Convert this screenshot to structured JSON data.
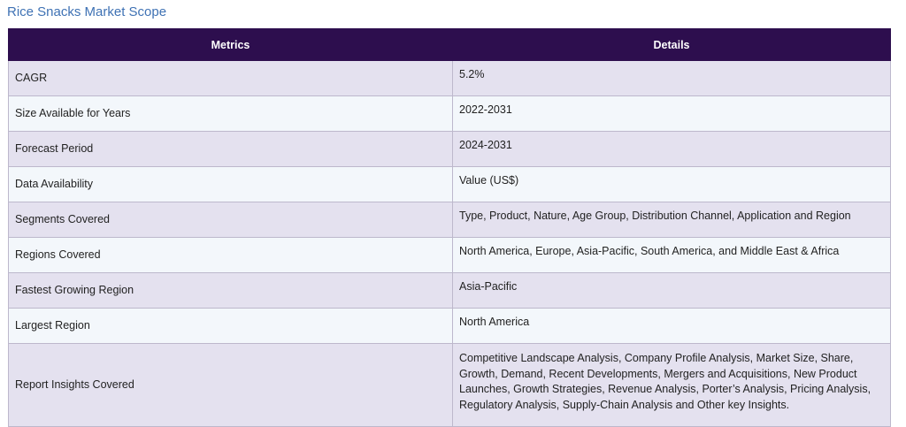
{
  "title": "Rice Snacks Market Scope",
  "table": {
    "header": [
      "Metrics",
      "Details"
    ],
    "rows": [
      [
        "CAGR",
        "5.2%"
      ],
      [
        "Size Available for Years",
        "2022-2031"
      ],
      [
        "Forecast Period",
        "2024-2031"
      ],
      [
        "Data Availability",
        "Value (US$)"
      ],
      [
        "Segments Covered",
        "Type, Product, Nature, Age Group, Distribution Channel, Application and Region"
      ],
      [
        "Regions Covered",
        "North America, Europe, Asia-Pacific, South America, and Middle East & Africa"
      ],
      [
        "Fastest Growing Region",
        "Asia-Pacific"
      ],
      [
        "Largest Region",
        "North America"
      ],
      [
        "Report Insights Covered",
        "Competitive Landscape Analysis, Company Profile Analysis, Market Size, Share, Growth, Demand, Recent Developments, Mergers and Acquisitions, New Product Launches, Growth Strategies, Revenue Analysis, Porter’s Analysis, Pricing Analysis, Regulatory Analysis, Supply-Chain Analysis and Other key Insights."
      ]
    ]
  }
}
